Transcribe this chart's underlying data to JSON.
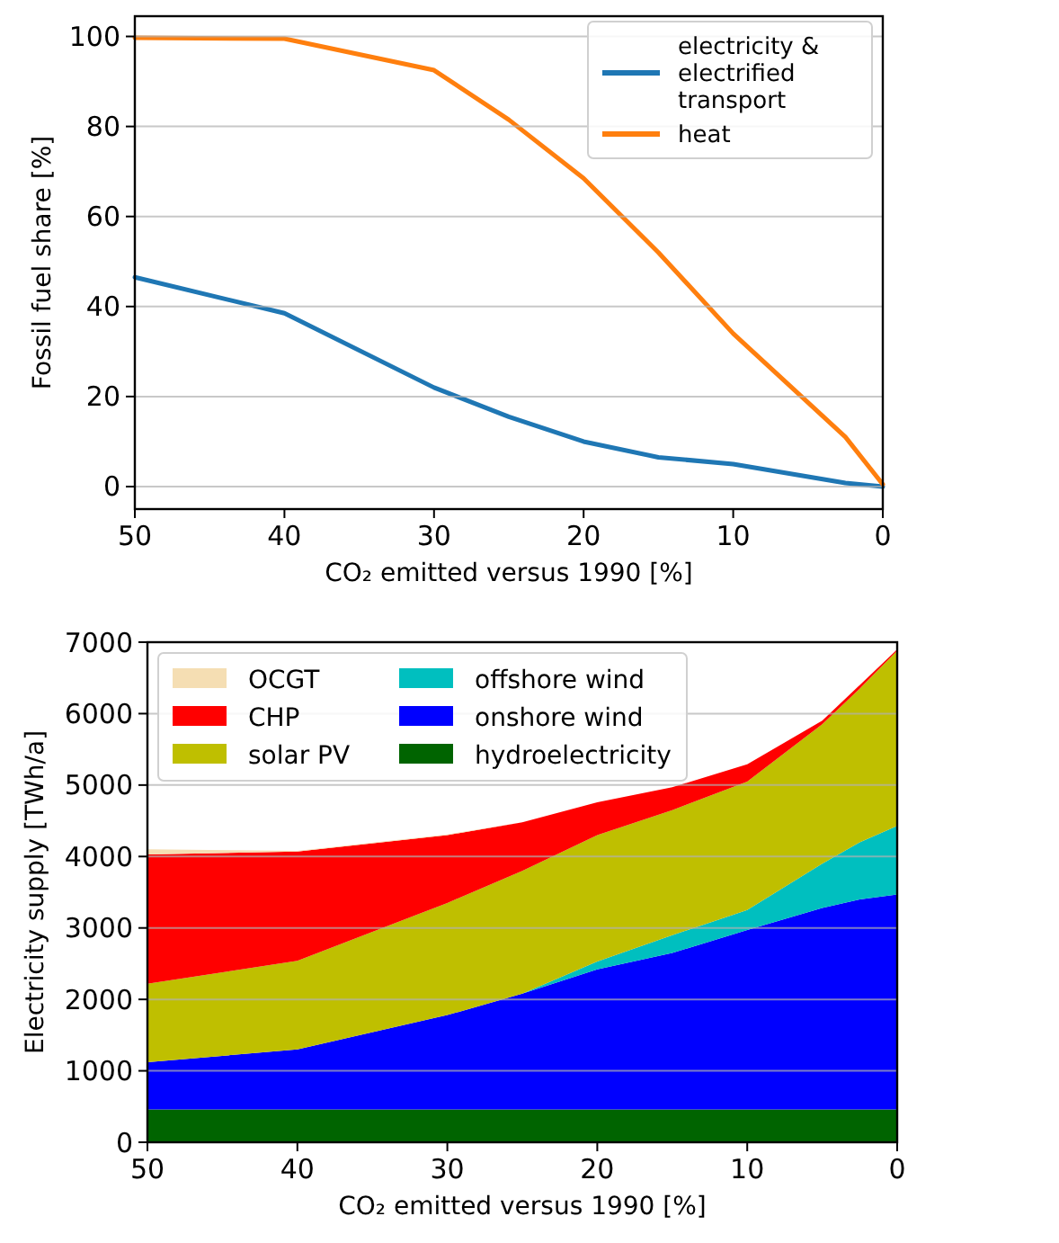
{
  "chart_data": [
    {
      "type": "line",
      "xlabel": "CO₂ emitted versus 1990 [%]",
      "ylabel": "Fossil fuel share [%]",
      "x": [
        50,
        40,
        30,
        25,
        20,
        15,
        10,
        2.5,
        0
      ],
      "series": [
        {
          "name": "electricity & electrified transport",
          "color": "#1f77b4",
          "values": [
            46.5,
            38.5,
            22,
            15.5,
            10,
            6.5,
            5,
            0.8,
            0
          ]
        },
        {
          "name": "heat",
          "color": "#ff7f0e",
          "values": [
            99.7,
            99.5,
            92.5,
            81.5,
            68.5,
            52,
            34,
            11,
            0.5
          ]
        }
      ],
      "xlim": [
        50,
        0
      ],
      "xticks": [
        50,
        40,
        30,
        20,
        10,
        0
      ],
      "ylim": [
        -5,
        104.5
      ],
      "yticks": [
        0,
        20,
        40,
        60,
        80,
        100
      ],
      "grid": "y",
      "legend": "top right",
      "line_style": "solid"
    },
    {
      "type": "area",
      "stacked": true,
      "xlabel": "CO₂ emitted versus 1990 [%]",
      "ylabel": "Electricity supply [TWh/a]",
      "x": [
        50,
        40,
        30,
        25,
        20,
        15,
        10,
        5,
        2.5,
        0
      ],
      "series": [
        {
          "name": "hydroelectricity",
          "color": "#006400",
          "values": [
            460,
            460,
            460,
            460,
            460,
            460,
            460,
            460,
            460,
            460
          ]
        },
        {
          "name": "onshore wind",
          "color": "#0000ff",
          "values": [
            660,
            840,
            1320,
            1620,
            1960,
            2190,
            2510,
            2820,
            2940,
            3010
          ]
        },
        {
          "name": "offshore wind",
          "color": "#00bfbf",
          "values": [
            0,
            0,
            0,
            0,
            110,
            250,
            280,
            620,
            800,
            960
          ]
        },
        {
          "name": "solar PV",
          "color": "#bfbf00",
          "values": [
            1100,
            1240,
            1570,
            1720,
            1770,
            1750,
            1800,
            1950,
            2150,
            2450
          ]
        },
        {
          "name": "CHP",
          "color": "#ff0000",
          "values": [
            1810,
            1530,
            950,
            680,
            460,
            320,
            240,
            50,
            50,
            20
          ]
        },
        {
          "name": "OCGT",
          "color": "#f5deb3",
          "values": [
            70,
            10,
            10,
            0,
            0,
            0,
            0,
            0,
            0,
            0
          ]
        }
      ],
      "xlim": [
        50,
        0
      ],
      "xticks": [
        50,
        40,
        30,
        20,
        10,
        0
      ],
      "ylim": [
        0,
        7000
      ],
      "yticks": [
        0,
        1000,
        2000,
        3000,
        4000,
        5000,
        6000,
        7000
      ],
      "grid": "y",
      "legend": "top left"
    }
  ]
}
